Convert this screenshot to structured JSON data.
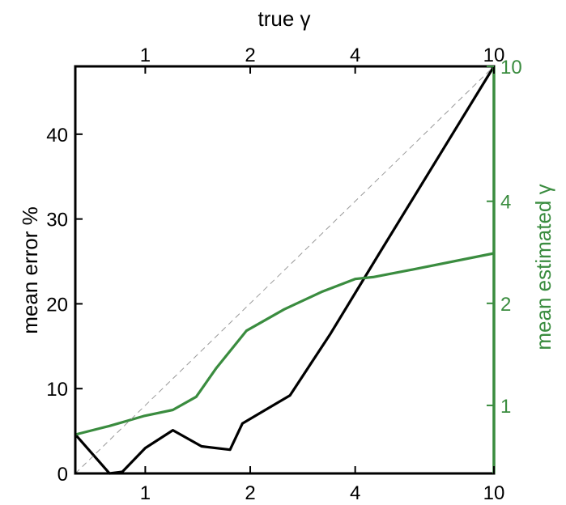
{
  "chart_data": {
    "type": "line",
    "xlabel_top": "true γ",
    "xlabel_bottom": "",
    "ylabel_left": "mean error %",
    "ylabel_right": "mean estimated γ",
    "x_scale": "log",
    "xlim": [
      0.63,
      10
    ],
    "x_ticks": [
      1,
      2,
      4,
      10
    ],
    "x_tick_labels": [
      "1",
      "2",
      "4",
      "10"
    ],
    "ylim_left": [
      0,
      48
    ],
    "y_ticks_left": [
      0,
      10,
      20,
      30,
      40
    ],
    "y_tick_labels_left": [
      "0",
      "10",
      "20",
      "30",
      "40"
    ],
    "ylim_right": [
      0.63,
      10
    ],
    "right_scale": "log",
    "y_ticks_right": [
      1,
      2,
      4,
      10
    ],
    "y_tick_labels_right": [
      "1",
      "2",
      "4",
      "10"
    ],
    "grid": false,
    "legend": "none",
    "colors": {
      "error": "#000000",
      "estimated": "#3a8c3f",
      "identity": "#999999",
      "axis": "#000000"
    },
    "series": [
      {
        "axis": "left",
        "color": "#000000",
        "x": [
          0.63,
          0.79,
          0.86,
          1.0,
          1.2,
          1.45,
          1.75,
          1.9,
          2.6,
          3.4,
          4.7,
          10.0
        ],
        "y": [
          4.6,
          0.0,
          0.2,
          3.0,
          5.1,
          3.2,
          2.8,
          5.9,
          9.2,
          16.5,
          26.0,
          48.0
        ]
      },
      {
        "axis": "right",
        "color": "#3a8c3f",
        "x": [
          0.63,
          0.79,
          0.99,
          1.2,
          1.4,
          1.6,
          1.95,
          2.5,
          3.2,
          4.0,
          4.5,
          6.0,
          10.0
        ],
        "y": [
          0.82,
          0.87,
          0.93,
          0.97,
          1.06,
          1.29,
          1.66,
          1.92,
          2.16,
          2.36,
          2.39,
          2.53,
          2.81
        ]
      },
      {
        "axis": "left",
        "color": "#999999",
        "style": "dashed",
        "x": [
          0.63,
          10.0
        ],
        "y": [
          0,
          48
        ]
      }
    ]
  }
}
